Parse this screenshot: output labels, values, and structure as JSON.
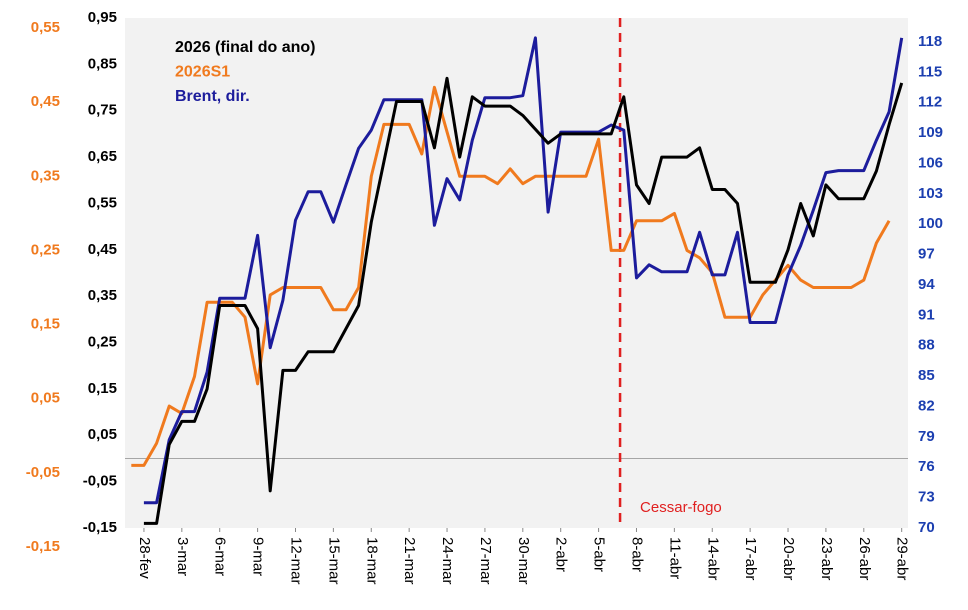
{
  "chart_data": {
    "type": "line",
    "categories": [
      null,
      "28-fev",
      null,
      null,
      "3-mar",
      null,
      null,
      "6-mar",
      null,
      null,
      "9-mar",
      null,
      null,
      "12-mar",
      null,
      null,
      "15-mar",
      null,
      null,
      "18-mar",
      null,
      null,
      "21-mar",
      null,
      null,
      "24-mar",
      null,
      null,
      "27-mar",
      null,
      null,
      "30-mar",
      null,
      null,
      "2-abr",
      null,
      null,
      "5-abr",
      null,
      null,
      "8-abr",
      null,
      null,
      "11-abr",
      null,
      null,
      "14-abr",
      null,
      null,
      "17-abr",
      null,
      null,
      "20-abr",
      null,
      null,
      "23-abr",
      null,
      null,
      "26-abr",
      null,
      null,
      "29-abr"
    ],
    "series": [
      {
        "name": "2026 (final do ano)",
        "color": "#000000",
        "axis": "y",
        "values": [
          null,
          -0.14,
          -0.14,
          0.03,
          0.08,
          0.08,
          0.15,
          0.33,
          0.33,
          0.33,
          0.28,
          -0.07,
          0.19,
          0.19,
          0.23,
          0.23,
          0.23,
          0.28,
          0.33,
          0.51,
          0.64,
          0.77,
          0.77,
          0.77,
          0.67,
          0.82,
          0.65,
          0.78,
          0.76,
          0.76,
          0.76,
          0.74,
          0.71,
          0.68,
          0.7,
          0.7,
          0.7,
          0.7,
          0.7,
          0.78,
          0.59,
          0.55,
          0.65,
          0.65,
          0.65,
          0.67,
          0.58,
          0.58,
          0.55,
          0.38,
          0.38,
          0.38,
          0.45,
          0.55,
          0.48,
          0.59,
          0.56,
          0.56,
          0.56,
          0.62,
          0.72,
          0.81
        ]
      },
      {
        "name": "2026S1",
        "color": "#f07a1e",
        "axis": "y3",
        "values": [
          -0.04,
          -0.04,
          -0.01,
          0.04,
          0.03,
          0.08,
          0.18,
          0.18,
          0.18,
          0.16,
          0.07,
          0.19,
          0.2,
          0.2,
          0.2,
          0.2,
          0.17,
          0.17,
          0.2,
          0.35,
          0.42,
          0.42,
          0.42,
          0.38,
          0.47,
          0.41,
          0.35,
          0.35,
          0.35,
          0.34,
          0.36,
          0.34,
          0.35,
          0.35,
          0.35,
          0.35,
          0.35,
          0.4,
          0.25,
          0.25,
          0.29,
          0.29,
          0.29,
          0.3,
          0.25,
          0.24,
          0.22,
          0.16,
          0.16,
          0.16,
          0.19,
          0.21,
          0.23,
          0.21,
          0.2,
          0.2,
          0.2,
          0.2,
          0.21,
          0.26,
          0.29,
          null
        ]
      },
      {
        "name": "Brent, dir.",
        "color": "#1c1c9c",
        "axis": "y2",
        "values": [
          null,
          72.5,
          72.5,
          78.7,
          81.5,
          81.5,
          85.4,
          92.7,
          92.7,
          92.7,
          98.9,
          87.8,
          92.5,
          100.4,
          103.2,
          103.2,
          100.2,
          103.9,
          107.5,
          109.3,
          112.3,
          112.3,
          112.3,
          112.3,
          99.9,
          104.5,
          102.4,
          108.3,
          112.5,
          112.5,
          112.5,
          112.7,
          118.4,
          101.2,
          109.1,
          109.1,
          109.1,
          109.1,
          109.8,
          109.3,
          94.7,
          96.0,
          95.3,
          95.3,
          95.3,
          99.2,
          95.0,
          95.0,
          99.2,
          90.3,
          90.3,
          90.3,
          95.0,
          97.9,
          101.4,
          105.1,
          105.3,
          105.3,
          105.3,
          108.3,
          111.1,
          118.4
        ]
      }
    ],
    "ylim": [
      -0.15,
      0.95
    ],
    "yticks": [
      {
        "value": -0.15,
        "label": "-0,15"
      },
      {
        "value": -0.05,
        "label": "-0,05"
      },
      {
        "value": 0.05,
        "label": "0,05"
      },
      {
        "value": 0.15,
        "label": "0,15"
      },
      {
        "value": 0.25,
        "label": "0,25"
      },
      {
        "value": 0.35,
        "label": "0,35"
      },
      {
        "value": 0.45,
        "label": "0,45"
      },
      {
        "value": 0.55,
        "label": "0,55"
      },
      {
        "value": 0.65,
        "label": "0,65"
      },
      {
        "value": 0.75,
        "label": "0,75"
      },
      {
        "value": 0.85,
        "label": "0,85"
      },
      {
        "value": 0.95,
        "label": "0,95"
      }
    ],
    "y3lim": [
      -0.15,
      0.55
    ],
    "y3ticks": [
      {
        "value": -0.15,
        "label": "-0,15"
      },
      {
        "value": -0.05,
        "label": "-0,05"
      },
      {
        "value": 0.05,
        "label": "0,05"
      },
      {
        "value": 0.15,
        "label": "0,15"
      },
      {
        "value": 0.25,
        "label": "0,25"
      },
      {
        "value": 0.35,
        "label": "0,35"
      },
      {
        "value": 0.45,
        "label": "0,45"
      },
      {
        "value": 0.55,
        "label": "0,55"
      }
    ],
    "y3color": "#f07a1e",
    "y2lim": [
      70,
      118
    ],
    "y2ticks": [
      70,
      73,
      76,
      79,
      82,
      85,
      88,
      91,
      94,
      97,
      100,
      103,
      106,
      109,
      112,
      115,
      118
    ],
    "y2color": "#1c3fb0",
    "annotation": {
      "text": "Cessar-fogo",
      "color": "#e02020"
    },
    "legend": "top-left",
    "grid": false
  }
}
